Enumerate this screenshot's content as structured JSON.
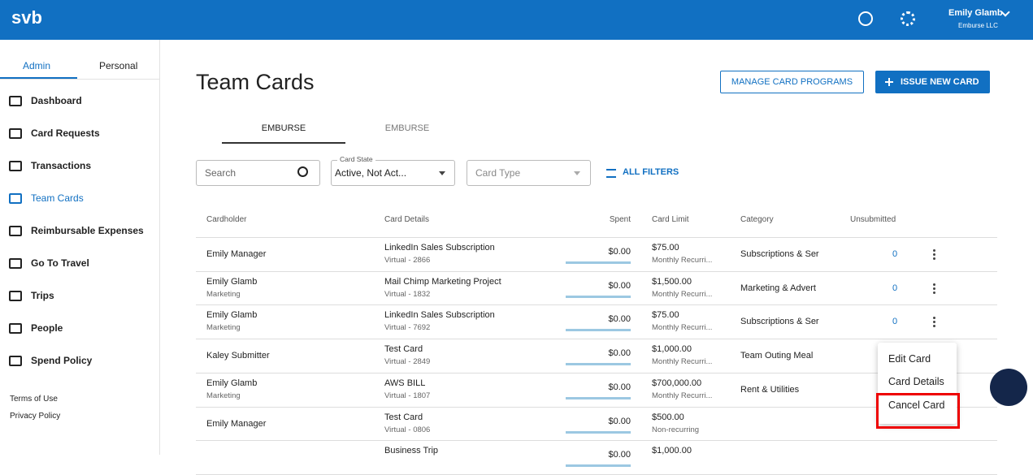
{
  "header": {
    "logo": "svb",
    "user_name": "Emily Glamb",
    "company": "Emburse LLC"
  },
  "sidebar": {
    "tabs": [
      "Admin",
      "Personal"
    ],
    "nav": [
      "Dashboard",
      "Card Requests",
      "Transactions",
      "Team Cards",
      "Reimbursable Expenses",
      "Go To Travel",
      "Trips",
      "People",
      "Spend Policy"
    ],
    "footer": [
      "Terms of Use",
      "Privacy Policy"
    ]
  },
  "main": {
    "title": "Team Cards",
    "buttons": [
      "MANAGE CARD PROGRAMS",
      "ISSUE NEW CARD"
    ],
    "tabs": [
      "EMBURSE",
      "EMBURSE"
    ],
    "filters": {
      "search": "Search",
      "card_state_label": "Card State",
      "card_state_value": "Active, Not Act...",
      "card_type": "Card Type",
      "all_filters": "ALL FILTERS"
    }
  },
  "table": {
    "columns": [
      "Cardholder",
      "Card Details",
      "Spent",
      "Card Limit",
      "Category",
      "Unsubmitted"
    ],
    "rows": [
      {
        "name": "Emily Manager",
        "card": "LinkedIn Sales Subscription",
        "card_sub": "Virtual - 2866",
        "spent": "$0.00",
        "limit": "$75.00",
        "limit_sub": "Monthly Recurri...",
        "category": "Subscriptions & Ser",
        "unsubmitted": "0"
      },
      {
        "name": "Emily Glamb",
        "name_sub": "Marketing",
        "card": "Mail Chimp Marketing Project",
        "card_sub": "Virtual - 1832",
        "spent": "$0.00",
        "limit": "$1,500.00",
        "limit_sub": "Monthly Recurri...",
        "category": "Marketing & Advert",
        "unsubmitted": "0"
      },
      {
        "name": "Emily Glamb",
        "name_sub": "Marketing",
        "card": "LinkedIn Sales Subscription",
        "card_sub": "Virtual - 7692",
        "spent": "$0.00",
        "limit": "$75.00",
        "limit_sub": "Monthly Recurri...",
        "category": "Subscriptions & Ser",
        "unsubmitted": "0"
      },
      {
        "name": "Kaley Submitter",
        "card": "Test Card",
        "card_sub": "Virtual - 2849",
        "spent": "$0.00",
        "limit": "$1,000.00",
        "limit_sub": "Monthly Recurri...",
        "category": "Team Outing Meal"
      },
      {
        "name": "Emily Glamb",
        "name_sub": "Marketing",
        "card": "AWS BILL",
        "card_sub": "Virtual - 1807",
        "spent": "$0.00",
        "limit": "$700,000.00",
        "limit_sub": "Monthly Recurri...",
        "category": "Rent & Utilities"
      },
      {
        "name": "Emily Manager",
        "card": "Test Card",
        "card_sub": "Virtual - 0806",
        "spent": "$0.00",
        "limit": "$500.00",
        "limit_sub": "Non-recurring"
      },
      {
        "card": "Business Trip",
        "spent": "$0.00",
        "limit": "$1,000.00"
      }
    ]
  },
  "menu": [
    "Edit Card",
    "Card Details",
    "Cancel Card"
  ]
}
